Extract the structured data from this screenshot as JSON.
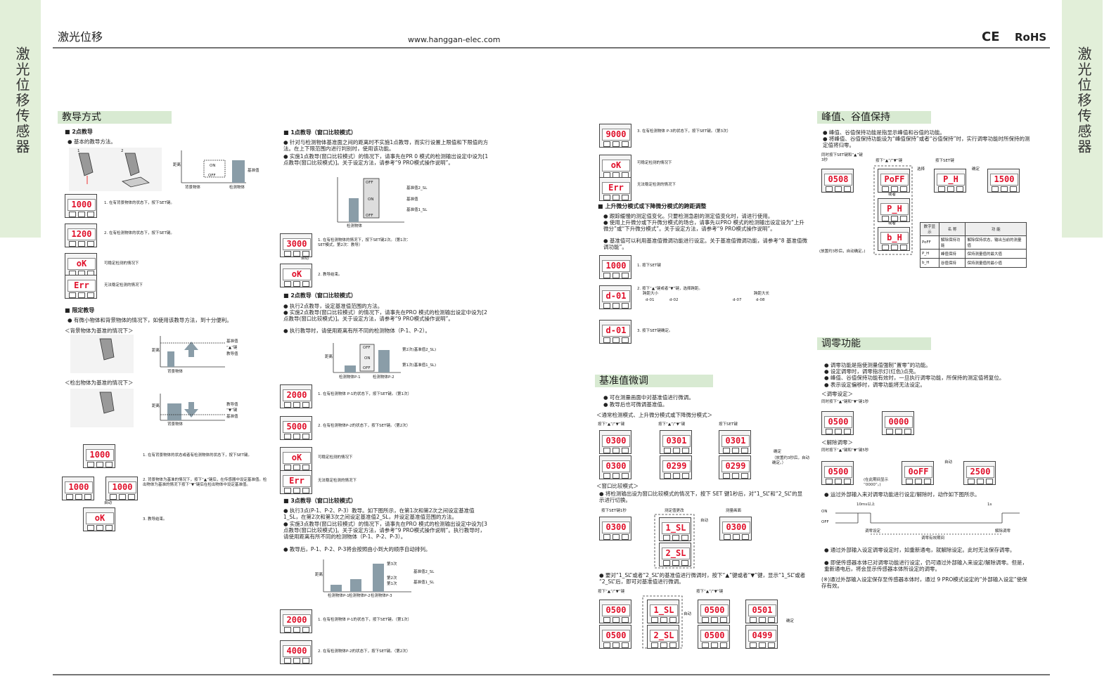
{
  "header": {
    "title": "激光位移",
    "url": "www.hanggan-elec.com",
    "ce": "CE",
    "rohs": "RoHS"
  },
  "side_tab": {
    "left": "激光位移传感器",
    "right": "激光位移传感器"
  },
  "col1": {
    "title": "教导方式",
    "texts": [
      "■ 2点教导",
      "● 基本的教导方法。",
      "1",
      "2",
      "基准值",
      "背景物体",
      "检测物体",
      "距离",
      "ON",
      "OFF",
      "1. 在有背景物体的状态下，按下SET键。",
      "2. 在有检测物体的状态下，按下SET键。",
      "可稳定检测的情况下",
      "无法稳定检测的情况下",
      "■ 限定教导",
      "● 有微小物体和背景物体的情况下，如使用该教导方法，到十分便利。",
      "＜背景物体为基准的情况下＞",
      "基准值",
      "“▲”键",
      "教导值",
      "背景物体",
      "＜检出物体为基准的情况下＞",
      "教导值",
      "“▼”键",
      "基准值",
      "背景物体",
      "1. 在有背景物体的状态或者有检测物体的状态下，按下SET键。",
      "2. 背景物体为基准的情况下，按下“▲”键后，在传感器中设定基准值。检出物体为基准的情况下按下“▼”键后在检出物体中设定基准值。",
      "自动",
      "3. 教导结束。",
      "距离",
      "距离"
    ],
    "displays": [
      "1000",
      "1200",
      "oK",
      "Err",
      "1000",
      "1000",
      "1000",
      "oK"
    ]
  },
  "col2": {
    "texts": [
      "■ 1点教导（窗口比较模式）",
      "● 针对与检测物体基准面之间的距离时不实施1点教导，而实行设置上限值和下限值的方法。在上下限范围内进行判别时，使用该功能。",
      "● 实施1点教导(窗口比较模式）的情况下，请事先在PR 0 模式的检测输出设定中设为[1点教导(窗口比较模式)]。关于设定方法，请参考“9 PRO模式操作说明”。",
      "基准值2_SL",
      "基准值",
      "基准值1_SL",
      "检测物体",
      "ON",
      "OFF",
      "OFF",
      "1. 在有检测物体的情况下，按下SET键2次。（第1次：SET模式，第2次：教导）",
      "自动",
      "2. 教导结束。",
      "■ 2点教导（窗口比较模式）",
      "● 执行2点教导，设定基准值范围的方法。",
      "● 实施2点教导(窗口比较模式）的情况下，请事先在PRO 模式的检测输出设定中设为[2点教导(窗口比较模式)]。关于设定方法，请参考“9 PRO模式操作说明”。",
      "● 执行教导时，请使用距离有所不同的检测物体（P-1、P-2）。",
      "第2次(基准值2_SL)",
      "第1次(基准值1_SL)",
      "检测物体P-1",
      "检测物体P-2",
      "距离",
      "OFF",
      "ON",
      "OFF",
      "1. 在有检测物体 P-1的状态下，按下SET键。（第1次）",
      "2. 在有检测物体P-2的状态下，按下SET键。（第2次）",
      "可稳定检测的情况下",
      "无法稳定检测的情况下",
      "■ 3点教导（窗口比较模式）",
      "● 执行3点(P-1、P-2、P-3）教导。如下图所示，在第1次和第2次之间设定基准值1_SL，在第2次和第3次之间设定基准值2_SL，并设定基准值范围的方法。",
      "● 实施3点教导(窗口比较模式）的情况下，请事先在PRO 模式的检测输出设定中设为[3点教导(窗口比较模式)]。关于设定方法，请参考“9 PRO模式操作说明”。执行教导时，请使用距离有所不同的检测物体（P-1、P-2、P-3）。",
      "● 教导后，P-1、P-2、P-3将会按照由小到大的顺序自动排列。",
      "第3次",
      "基准值2_SL",
      "第2次",
      "第1次",
      "基准值1_SL",
      "检测物体P-1",
      "检测物体P-2",
      "检测物体P-3",
      "距离",
      "1. 在有检测物体 P-1的状态下，按下SET键。（第1次）",
      "2. 在有检测物体P-2的状态下，按下SET键。（第2次）"
    ],
    "displays": [
      "3000",
      "oK",
      "2000",
      "5000",
      "oK",
      "Err",
      "2000",
      "4000"
    ]
  },
  "col3": {
    "title": "基准值微调",
    "texts": [
      "3. 在有检测物体 P-3的状态下，按下SET键。（第3次）",
      "可稳定检测的情况下",
      "无法稳定检测的情况下",
      "■ 上升微分模式或下降微分模式的跨距调整",
      "● 跟踪缓慢的测定值变化。只要检测急剧的测定值变化时，请进行使用。",
      "● 使用上升微分或下升微分模式的场合，请事先以PRO 模式的检测输出设定设为“上升微分”或“下升微分模式”。关于设定方法，请参考“9 PRO模式操作说明”。",
      "● 基准值可以利用基准值微调功能进行设定。关于基准值微调功能，请参考“8 基准值微调功能”。",
      "1. 按下SET键",
      "2. 按下“▲”键或者“▼”键，选择跨距。",
      "跨距大小",
      "跨距大长",
      "d-01",
      "d-02",
      "d-07",
      "d-08",
      "3. 按下SET键确定。",
      "● 可在测量画面中对基准值进行微调。",
      "● 教导后也可微调基准值。",
      "＜通常检测模式、上升微分模式或下降微分模式＞",
      "按下“▲”/“▼”键",
      "按下“▲”/“▼”键",
      "按下SET键",
      "确定",
      "（放置约3秒后，自动确定。）",
      "＜窗口比较模式＞",
      "● 将检测输出设为窗口比较模式的情况下，按下 SET 键1秒后，对“1_SL”和“2_SL”的显示进行切换。",
      "按下SET键1秒",
      "测定值更改",
      "自动",
      "测量画面",
      "● 要对“1_SL”或者“2_SL”的基准值进行微调时，按下“▲”键或者“▼”键，显示“1_SL”或者“2_SL”后，即可对基准值进行微调。",
      "按下“▲”/“▼”键",
      "按下“▲”/“▼”键",
      "自动",
      "或者",
      "确定"
    ],
    "displays": [
      "9000",
      "oK",
      "Err",
      "1000",
      "d-01",
      "d-01",
      "0300",
      "0301",
      "0301",
      "0300",
      "0299",
      "0299",
      "0300",
      "1_SL",
      "2_SL",
      "0300",
      "0500",
      "1_SL",
      "0500",
      "0501",
      "0500",
      "2_SL",
      "0500",
      "0499"
    ]
  },
  "col4": {
    "title": "峰值、谷值保持",
    "title2": "调零功能",
    "texts": [
      "● 峰值、谷值保持功能是指显示峰值和谷值的功能。",
      "● 将峰值、谷值保持功能设为“峰值保持”或者“谷值保持”时，实行调零功能时所保持的测定值将归零。",
      "同时按下SET键和“▲”键3秒",
      "按下“▲”/“▼”键",
      "按下SET键",
      "选择",
      "确定",
      "或者",
      "或者",
      "(放置约3秒后，自动确定。)",
      "● 调零功能是指使测量值强制“置零”的功能。",
      "● 设定调零时，调零指示灯(红色)点亮。",
      "● 峰值、谷值保持功能有效时，一旦执行调零功能，所保持的测定值将复位。",
      "● 表示设定偏移时，调零功能将无法设定。",
      "＜调零设定＞",
      "同时按下“▲”键和“▼”键1秒",
      "确定",
      "＜解除调零＞",
      "同时按下“▲”键和“▼”键5秒",
      "自动",
      "(在此期间显示“0000”。)",
      "● 运过外部输入来对调零功能进行设定/解除时，动作如下图所示。",
      "ON",
      "OFF",
      "10ms以上",
      "1s",
      "调零设定",
      "解除调零",
      "调零有效期间",
      "● 通过外部输入设定调零设定时，如重新通电，就解除设定。此时无法保存调零。",
      "● 即使传感器本体已对调零功能进行设定，仍可通过外部输入来设定/解除调零。但是，重新通电后，将会显示传感器本体所设定的调零。",
      "(※)通过外部输入设定保存至传感器本体时，通过 9 PRO模式设定的“外部输入设定”使保存有效。"
    ],
    "displays": [
      "0508",
      "PoFF",
      "P_H",
      "1500",
      "P_H",
      "b_H",
      "0500",
      "0000",
      "0500",
      "0oFF",
      "2500"
    ],
    "table": {
      "header": [
        "数字显示",
        "名 称",
        "功 能"
      ],
      "rows": [
        [
          "PoFF",
          "解除保持功能",
          "解除保持状态，输出当前的测量值"
        ],
        [
          "P_H",
          "峰值保持",
          "保持测量值的最大值"
        ],
        [
          "b_H",
          "谷值保持",
          "保持测量值的最小值"
        ]
      ]
    }
  }
}
